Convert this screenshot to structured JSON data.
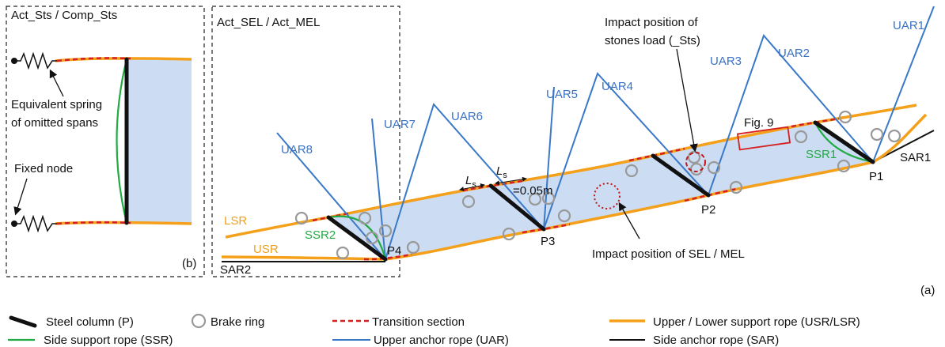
{
  "panel_b": {
    "title": "Act_Sts / Comp_Sts",
    "spring_label": [
      "Equivalent spring",
      "of omitted spans"
    ],
    "fixed_node_label": "Fixed node",
    "tag": "(b)"
  },
  "panel_a": {
    "title": "Act_SEL / Act_MEL",
    "upper_anchor_ropes": [
      "UAR1",
      "UAR2",
      "UAR3",
      "UAR4",
      "UAR5",
      "UAR6",
      "UAR7",
      "UAR8"
    ],
    "side_anchor_ropes": [
      "SAR1",
      "SAR2"
    ],
    "columns": [
      "P1",
      "P2",
      "P3",
      "P4"
    ],
    "support_ropes": [
      "LSR",
      "USR"
    ],
    "side_support_ropes": [
      "SSR1",
      "SSR2"
    ],
    "stones_impact_label": [
      "Impact position of",
      "stones load (_Sts)"
    ],
    "figure_ref": "Fig. 9",
    "segment_length": {
      "symbol": "L",
      "subscript": "s",
      "value_label": "=0.05m"
    },
    "sel_impact_label": "Impact position of SEL / MEL",
    "tag": "(a)"
  },
  "legend": [
    {
      "label": "Steel column (P)"
    },
    {
      "label": "Brake ring"
    },
    {
      "label": "Transition section"
    },
    {
      "label": "Upper / Lower support rope (USR/LSR)"
    },
    {
      "label": "Side support  rope (SSR)"
    },
    {
      "label": "Upper anchor rope (UAR)"
    },
    {
      "label": "Side anchor rope (SAR)"
    }
  ]
}
